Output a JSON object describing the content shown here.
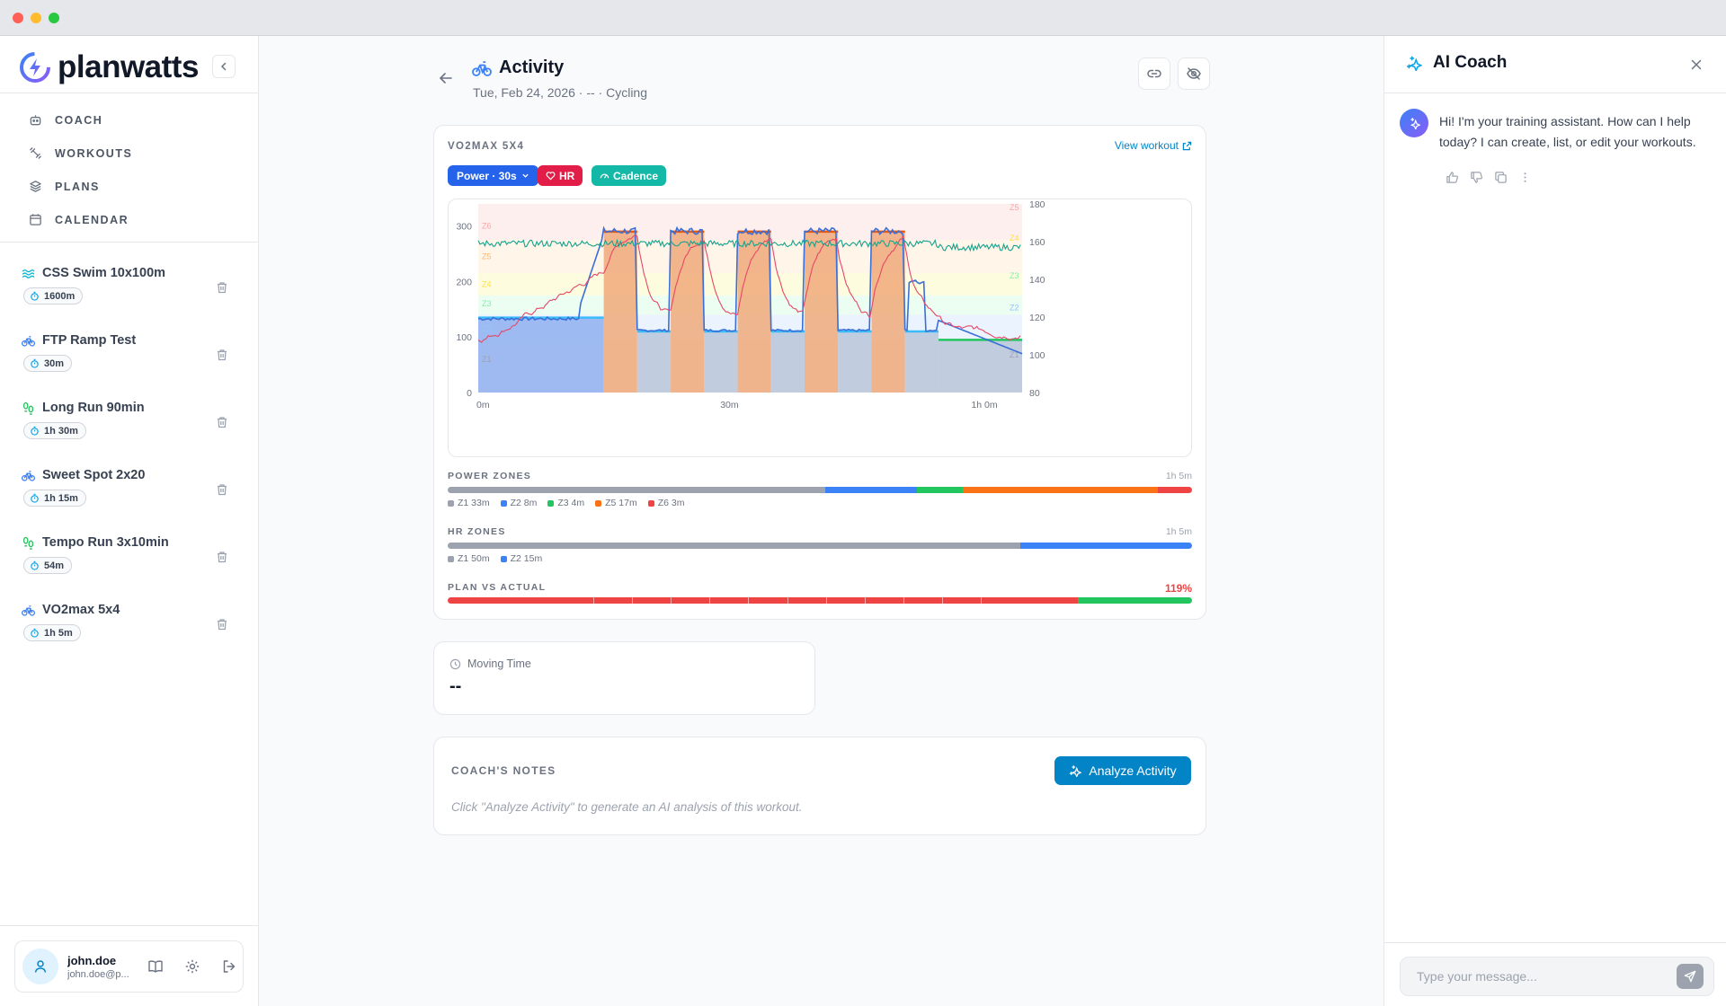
{
  "app": {
    "brand": "planwatts"
  },
  "nav": {
    "items": [
      {
        "key": "coach",
        "label": "COACH",
        "icon": "robot-icon"
      },
      {
        "key": "workouts",
        "label": "WORKOUTS",
        "icon": "dumbbell-icon"
      },
      {
        "key": "plans",
        "label": "PLANS",
        "icon": "layers-icon"
      },
      {
        "key": "calendar",
        "label": "CALENDAR",
        "icon": "calendar-icon"
      }
    ]
  },
  "workouts": [
    {
      "title": "CSS Swim 10x100m",
      "duration": "1600m",
      "sport": "swim",
      "color": "#06b6d4"
    },
    {
      "title": "FTP Ramp Test",
      "duration": "30m",
      "sport": "bike",
      "color": "#3b82f6"
    },
    {
      "title": "Long Run 90min",
      "duration": "1h 30m",
      "sport": "run",
      "color": "#22c55e"
    },
    {
      "title": "Sweet Spot 2x20",
      "duration": "1h 15m",
      "sport": "bike",
      "color": "#3b82f6"
    },
    {
      "title": "Tempo Run 3x10min",
      "duration": "54m",
      "sport": "run",
      "color": "#22c55e"
    },
    {
      "title": "VO2max 5x4",
      "duration": "1h 5m",
      "sport": "bike",
      "color": "#3b82f6"
    }
  ],
  "user": {
    "name": "john.doe",
    "email": "john.doe@p..."
  },
  "activity": {
    "title": "Activity",
    "subtitle": "Tue, Feb 24, 2026 · -- · Cycling",
    "workout_name": "VO2MAX 5X4",
    "view_workout": "View workout",
    "pills": {
      "power": "Power · 30s",
      "hr": "HR",
      "cadence": "Cadence"
    },
    "moving_time_label": "Moving Time",
    "moving_time_value": "--"
  },
  "chart_data": {
    "type": "line",
    "x_ticks": [
      "0m",
      "30m",
      "1h 0m"
    ],
    "y_left_ticks": [
      "0",
      "100",
      "200",
      "300"
    ],
    "y_right_ticks": [
      "80",
      "100",
      "120",
      "140",
      "160",
      "180"
    ],
    "y_left_range": [
      0,
      340
    ],
    "y_right_range": [
      80,
      180
    ],
    "left_zone_labels": [
      "Z1",
      "Z2",
      "Z3",
      "Z4",
      "Z5",
      "Z6"
    ],
    "right_zone_labels": [
      "Z1",
      "Z2",
      "Z3",
      "Z4",
      "Z5"
    ],
    "x_range_min": [
      0,
      65
    ],
    "planned_intervals": [
      {
        "start": 0,
        "end": 15,
        "power": 135
      },
      {
        "start": 15,
        "end": 19,
        "power": 290
      },
      {
        "start": 19,
        "end": 23,
        "power": 110
      },
      {
        "start": 23,
        "end": 27,
        "power": 290
      },
      {
        "start": 27,
        "end": 31,
        "power": 110
      },
      {
        "start": 31,
        "end": 35,
        "power": 290
      },
      {
        "start": 35,
        "end": 39,
        "power": 110
      },
      {
        "start": 39,
        "end": 43,
        "power": 290
      },
      {
        "start": 43,
        "end": 47,
        "power": 110
      },
      {
        "start": 47,
        "end": 51,
        "power": 290
      },
      {
        "start": 51,
        "end": 55,
        "power": 110
      },
      {
        "start": 55,
        "end": 65,
        "power": 95
      }
    ]
  },
  "power_zones": {
    "label": "POWER ZONES",
    "total": "1h 5m",
    "segments": [
      {
        "label": "Z1 33m",
        "minutes": 33,
        "color": "#9ca3af"
      },
      {
        "label": "Z2 8m",
        "minutes": 8,
        "color": "#3b82f6"
      },
      {
        "label": "Z3 4m",
        "minutes": 4,
        "color": "#22c55e"
      },
      {
        "label": "Z5 17m",
        "minutes": 17,
        "color": "#f97316"
      },
      {
        "label": "Z6 3m",
        "minutes": 3,
        "color": "#ef4444"
      }
    ]
  },
  "hr_zones": {
    "label": "HR ZONES",
    "total": "1h 5m",
    "segments": [
      {
        "label": "Z1 50m",
        "minutes": 50,
        "color": "#9ca3af"
      },
      {
        "label": "Z2 15m",
        "minutes": 15,
        "color": "#3b82f6"
      }
    ]
  },
  "plan_vs_actual": {
    "label": "PLAN VS ACTUAL",
    "value": "119%",
    "value_color": "#ef4444",
    "red_fraction": 0.847,
    "red_color": "#ef4444",
    "green_color": "#22c55e"
  },
  "coach_notes": {
    "label": "COACH'S NOTES",
    "button": "Analyze Activity",
    "hint": "Click \"Analyze Activity\" to generate an AI analysis of this workout."
  },
  "ai_coach": {
    "title": "AI Coach",
    "message": "Hi! I'm your training assistant. How can I help today? I can create, list, or edit your workouts.",
    "input_placeholder": "Type your message..."
  },
  "colors": {
    "accent": "#0284c7",
    "power_pill": "#2563eb",
    "hr_pill": "#e11d48",
    "cadence_pill": "#14b8a6"
  }
}
